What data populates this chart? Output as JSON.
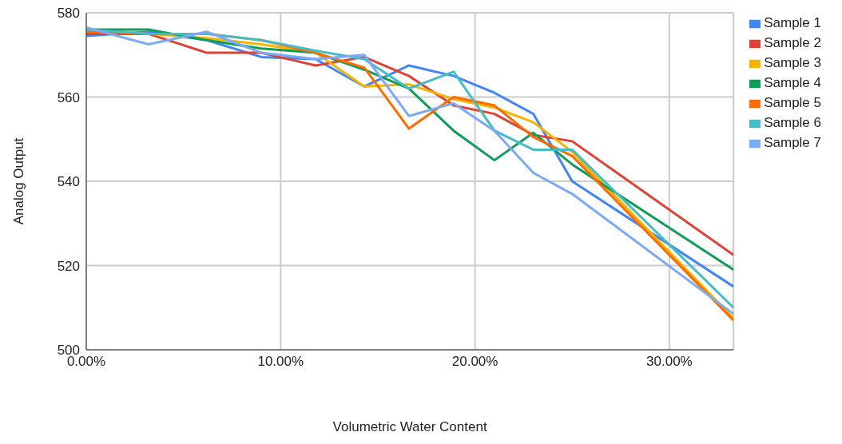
{
  "chart_data": {
    "type": "line",
    "xlabel": "Volumetric Water Content",
    "ylabel": "Analog Output",
    "x": [
      0,
      3.2,
      6.2,
      9.0,
      11.8,
      14.3,
      16.6,
      18.9,
      21.0,
      23.0,
      25.0,
      33.3
    ],
    "series": [
      {
        "name": "Sample 1",
        "color": "#4285f4",
        "values": [
          574.5,
          575.5,
          573.5,
          569.5,
          569,
          562.5,
          567.5,
          565,
          561,
          556,
          540,
          515
        ]
      },
      {
        "name": "Sample 2",
        "color": "#db4437",
        "values": [
          575,
          575,
          570.5,
          570.5,
          567.5,
          569.5,
          565,
          558,
          556,
          551,
          549.5,
          522.5
        ]
      },
      {
        "name": "Sample 3",
        "color": "#f4b400",
        "values": [
          576,
          575,
          574,
          572.5,
          570.5,
          562.5,
          563,
          559.5,
          557.5,
          554,
          547,
          507.5
        ]
      },
      {
        "name": "Sample 4",
        "color": "#0f9d58",
        "values": [
          576,
          576,
          573.5,
          571.5,
          570.5,
          566.5,
          562,
          552,
          545,
          551.5,
          544,
          519
        ]
      },
      {
        "name": "Sample 5",
        "color": "#ff6d01",
        "values": [
          575.5,
          575,
          575,
          573.5,
          570.5,
          567,
          552.5,
          560,
          558,
          550.5,
          546,
          507
        ]
      },
      {
        "name": "Sample 6",
        "color": "#46bdc6",
        "values": [
          576,
          575,
          575,
          573.5,
          571,
          569,
          562,
          566,
          552,
          547.5,
          547.5,
          510
        ]
      },
      {
        "name": "Sample 7",
        "color": "#7baaf7",
        "values": [
          576.5,
          572.5,
          575.5,
          570.5,
          569,
          570,
          555.5,
          558.5,
          552,
          542,
          537,
          508.5
        ]
      }
    ],
    "xlim": [
      0,
      33.3
    ],
    "xticks": [
      {
        "value": 0,
        "label": "0.00%"
      },
      {
        "value": 10,
        "label": "10.00%"
      },
      {
        "value": 20,
        "label": "20.00%"
      },
      {
        "value": 30,
        "label": "30.00%"
      }
    ],
    "ylim": [
      500,
      580
    ],
    "yticks": [
      500,
      520,
      540,
      560,
      580
    ],
    "grid": true,
    "legend": "top right",
    "marker": "none",
    "line_style": "solid"
  }
}
